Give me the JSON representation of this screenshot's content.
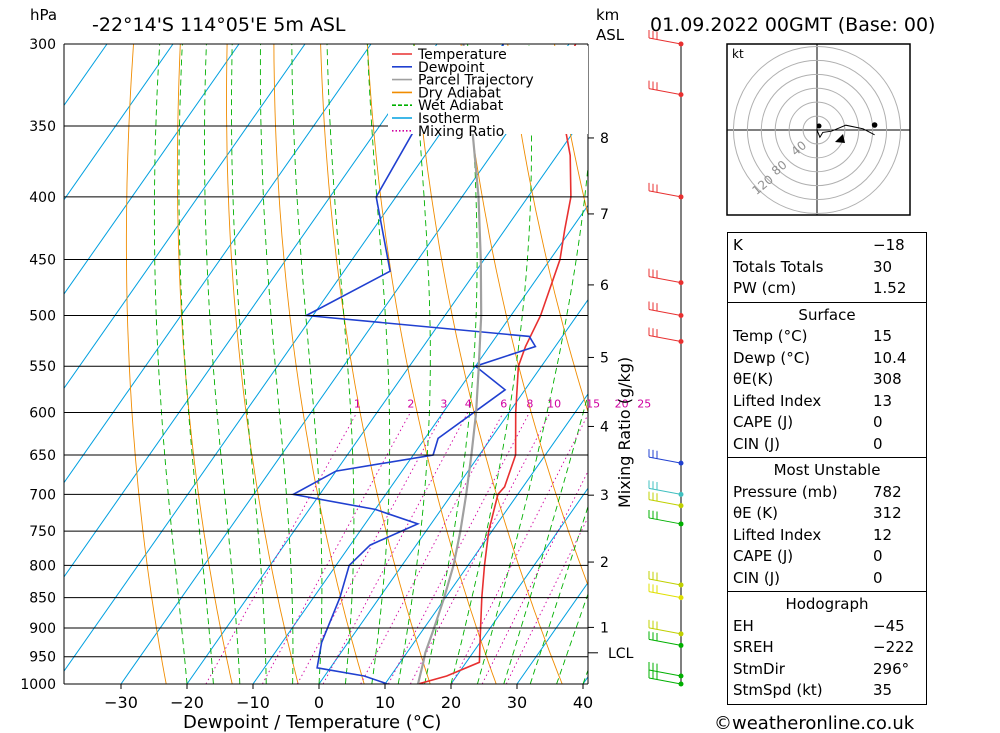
{
  "header": {
    "location": "-22°14'S 114°05'E 5m ASL",
    "datetime": "01.09.2022 00GMT (Base: 00)",
    "pressure_unit": "hPa",
    "height_unit_line1": "km",
    "height_unit_line2": "ASL"
  },
  "footer": {
    "credit": "©weatheronline.co.uk"
  },
  "chart_data": {
    "type": "line",
    "subtype": "skew-T log-P sounding",
    "xlabel": "Dewpoint / Temperature (°C)",
    "ylabel": "hPa",
    "right_axis_label": "Mixing Ratio (g/kg)",
    "x_ticks": [
      -30,
      -20,
      -10,
      0,
      10,
      20,
      30,
      40
    ],
    "xlim": [
      -40,
      40
    ],
    "y_ticks": [
      300,
      350,
      400,
      450,
      500,
      550,
      600,
      650,
      700,
      750,
      800,
      850,
      900,
      950,
      1000
    ],
    "ylim": [
      1000,
      300
    ],
    "y_scale": "log",
    "height_km_ticks": [
      {
        "km": "8",
        "p": 358
      },
      {
        "km": "7",
        "p": 413
      },
      {
        "km": "6",
        "p": 472
      },
      {
        "km": "5",
        "p": 541
      },
      {
        "km": "4",
        "p": 616
      },
      {
        "km": "3",
        "p": 701
      },
      {
        "km": "2",
        "p": 795
      },
      {
        "km": "1",
        "p": 899
      }
    ],
    "lcl": {
      "label": "LCL",
      "p": 943
    },
    "mixing_ratio_labels": [
      "1",
      "2",
      "3",
      "4",
      "6",
      "8",
      "10",
      "15",
      "20",
      "25"
    ],
    "legend": {
      "placement": "top-right of plot",
      "entries": [
        {
          "name": "Temperature",
          "color": "#e83030",
          "style": "solid"
        },
        {
          "name": "Dewpoint",
          "color": "#2040d0",
          "style": "solid"
        },
        {
          "name": "Parcel Trajectory",
          "color": "#a0a0a0",
          "style": "solid"
        },
        {
          "name": "Dry Adiabat",
          "color": "#f08c00",
          "style": "solid"
        },
        {
          "name": "Wet Adiabat",
          "color": "#00b000",
          "style": "dashed"
        },
        {
          "name": "Isotherm",
          "color": "#00a0e0",
          "style": "solid"
        },
        {
          "name": "Mixing Ratio",
          "color": "#d000a0",
          "style": "dotted"
        }
      ]
    },
    "series": [
      {
        "name": "Temperature",
        "points": [
          [
            1000,
            15.0
          ],
          [
            985,
            18.5
          ],
          [
            960,
            22.0
          ],
          [
            925,
            20.0
          ],
          [
            850,
            15.5
          ],
          [
            800,
            12.5
          ],
          [
            750,
            9.5
          ],
          [
            700,
            7.0
          ],
          [
            690,
            7.2
          ],
          [
            650,
            5.5
          ],
          [
            600,
            1.0
          ],
          [
            550,
            -3.5
          ],
          [
            530,
            -4.5
          ],
          [
            500,
            -5.5
          ],
          [
            450,
            -8.5
          ],
          [
            425,
            -11.0
          ],
          [
            400,
            -13.5
          ],
          [
            370,
            -18.0
          ],
          [
            340,
            -24.0
          ],
          [
            330,
            -27.0
          ],
          [
            300,
            -29.0
          ]
        ]
      },
      {
        "name": "Dewpoint",
        "points": [
          [
            1000,
            10.4
          ],
          [
            985,
            6.0
          ],
          [
            970,
            -2.0
          ],
          [
            925,
            -4.0
          ],
          [
            850,
            -6.0
          ],
          [
            800,
            -8.0
          ],
          [
            770,
            -7.0
          ],
          [
            740,
            -2.0
          ],
          [
            720,
            -10.0
          ],
          [
            700,
            -24.0
          ],
          [
            670,
            -20.0
          ],
          [
            650,
            -7.0
          ],
          [
            630,
            -8.0
          ],
          [
            575,
            -3.0
          ],
          [
            550,
            -10.0
          ],
          [
            530,
            -3.0
          ],
          [
            520,
            -5.0
          ],
          [
            500,
            -41.0
          ],
          [
            460,
            -33.0
          ],
          [
            400,
            -43.0
          ],
          [
            330,
            -45.0
          ],
          [
            330,
            -35.0
          ],
          [
            300,
            -40.0
          ]
        ]
      },
      {
        "name": "Parcel Trajectory",
        "points": [
          [
            1000,
            15.0
          ],
          [
            960,
            13.5
          ],
          [
            943,
            12.8
          ],
          [
            900,
            11.5
          ],
          [
            850,
            9.8
          ],
          [
            800,
            7.8
          ],
          [
            750,
            5.2
          ],
          [
            700,
            2.2
          ],
          [
            650,
            -1.2
          ],
          [
            600,
            -5.0
          ],
          [
            550,
            -9.5
          ],
          [
            500,
            -14.5
          ],
          [
            450,
            -20.5
          ],
          [
            400,
            -27.5
          ],
          [
            350,
            -36.0
          ],
          [
            300,
            -46.0
          ]
        ]
      }
    ],
    "wind_barbs": [
      {
        "p": 300,
        "color": "#e83030"
      },
      {
        "p": 330,
        "color": "#e83030"
      },
      {
        "p": 400,
        "color": "#e83030"
      },
      {
        "p": 470,
        "color": "#e83030"
      },
      {
        "p": 500,
        "color": "#e83030"
      },
      {
        "p": 525,
        "color": "#e83030"
      },
      {
        "p": 660,
        "color": "#2040d0"
      },
      {
        "p": 700,
        "color": "#40c0c0"
      },
      {
        "p": 715,
        "color": "#c0d000"
      },
      {
        "p": 740,
        "color": "#00b000"
      },
      {
        "p": 830,
        "color": "#c0d000"
      },
      {
        "p": 850,
        "color": "#e0e000"
      },
      {
        "p": 910,
        "color": "#c0d000"
      },
      {
        "p": 930,
        "color": "#00b000"
      },
      {
        "p": 985,
        "color": "#00b000"
      },
      {
        "p": 1000,
        "color": "#00b000"
      }
    ],
    "hodograph": {
      "unit_label": "kt",
      "ring_labels": [
        "40",
        "80",
        "120"
      ],
      "points": [
        [
          0,
          0
        ],
        [
          2,
          6
        ],
        [
          4,
          2
        ],
        [
          10,
          1
        ],
        [
          20,
          -4
        ],
        [
          32,
          -1
        ],
        [
          40,
          4
        ]
      ]
    }
  },
  "indices": {
    "general": [
      {
        "label": "K",
        "value": "-18"
      },
      {
        "label": "Totals Totals",
        "value": "30"
      },
      {
        "label": "PW (cm)",
        "value": "1.52"
      }
    ],
    "surface": {
      "title": "Surface",
      "rows": [
        {
          "label": "Temp (°C)",
          "value": "15"
        },
        {
          "label": "Dewp (°C)",
          "value": "10.4"
        },
        {
          "label": "θE(K)",
          "value": "308"
        },
        {
          "label": "Lifted Index",
          "value": "13"
        },
        {
          "label": "CAPE (J)",
          "value": "0"
        },
        {
          "label": "CIN (J)",
          "value": "0"
        }
      ]
    },
    "most_unstable": {
      "title": "Most Unstable",
      "rows": [
        {
          "label": "Pressure (mb)",
          "value": "782"
        },
        {
          "label": "θE (K)",
          "value": "312"
        },
        {
          "label": "Lifted Index",
          "value": "12"
        },
        {
          "label": "CAPE (J)",
          "value": "0"
        },
        {
          "label": "CIN (J)",
          "value": "0"
        }
      ]
    },
    "hodograph_table": {
      "title": "Hodograph",
      "rows": [
        {
          "label": "EH",
          "value": "-45"
        },
        {
          "label": "SREH",
          "value": "-222"
        },
        {
          "label": "StmDir",
          "value": "296°"
        },
        {
          "label": "StmSpd (kt)",
          "value": "35"
        }
      ]
    }
  }
}
